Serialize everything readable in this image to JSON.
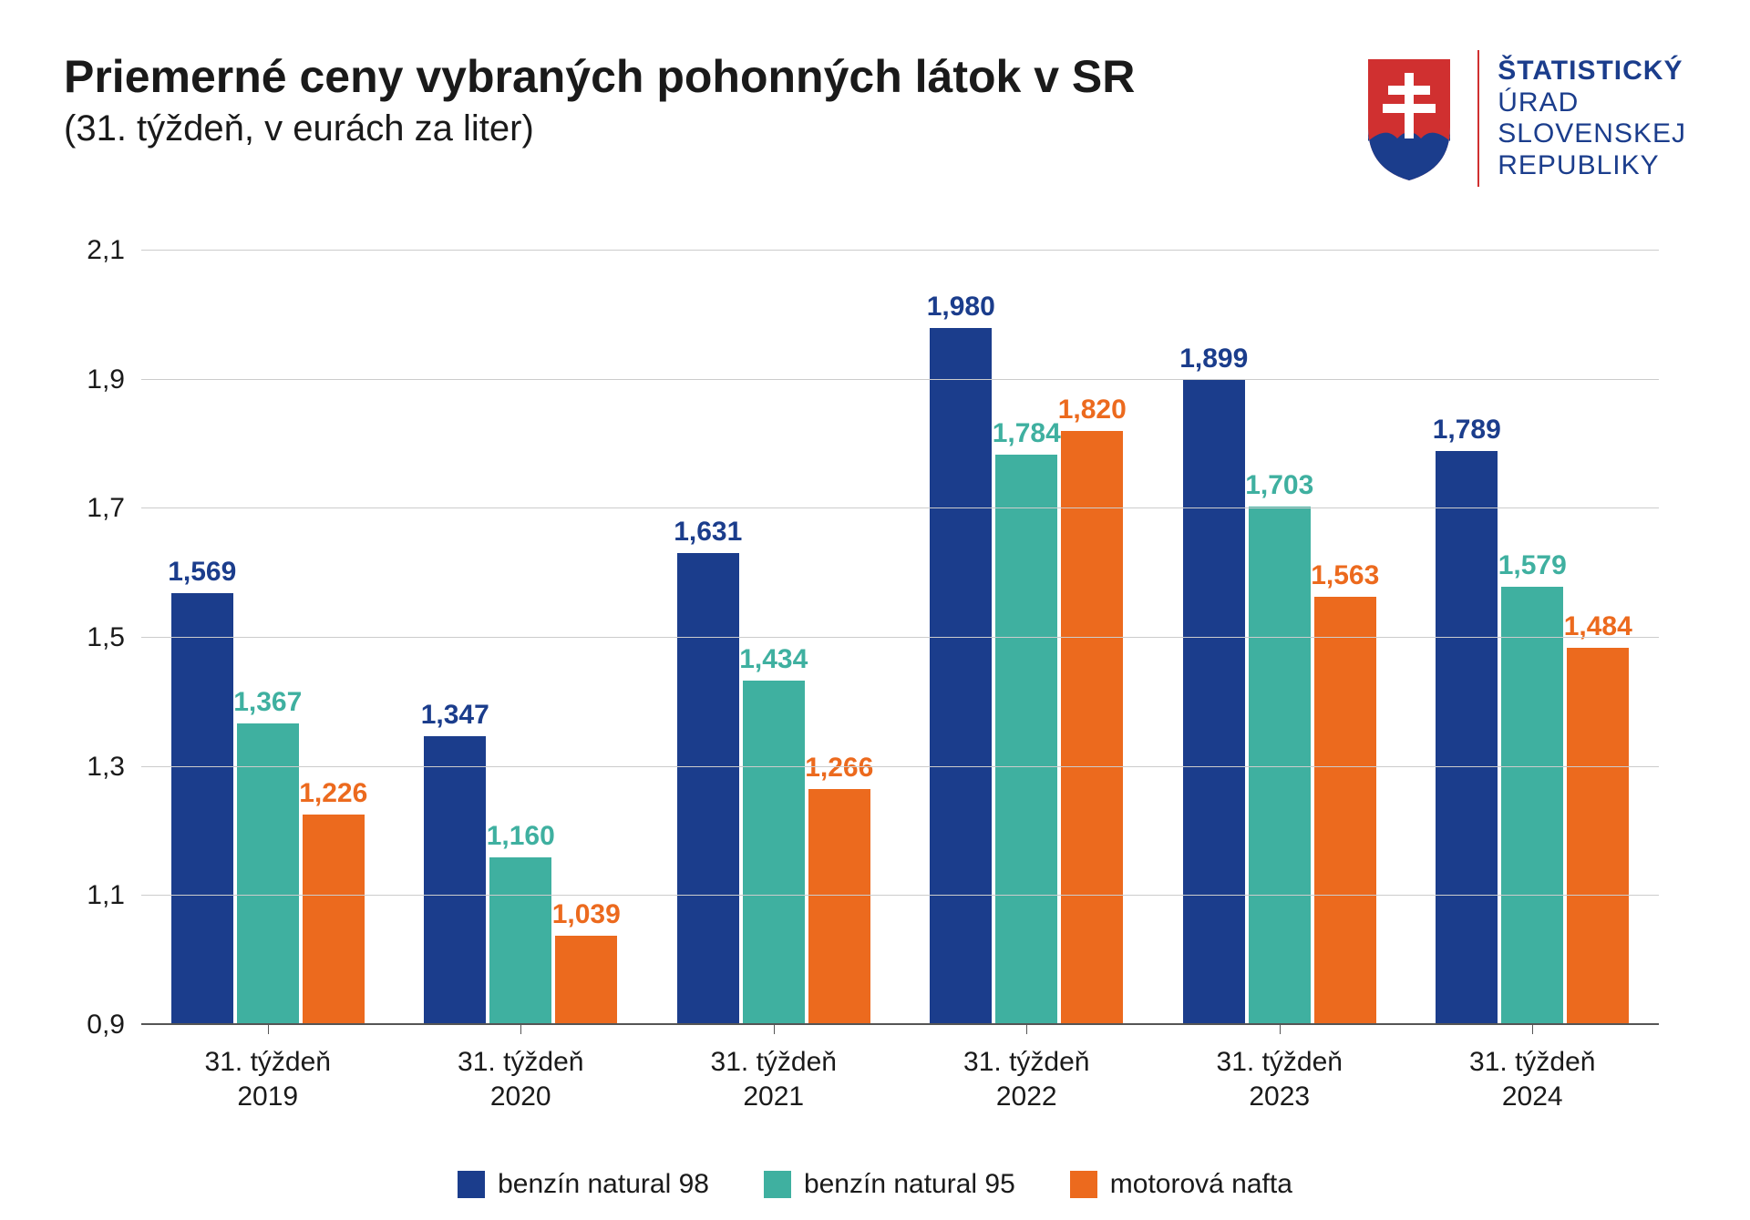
{
  "header": {
    "title": "Priemerné ceny vybraných pohonných látok v SR",
    "subtitle": "(31. týždeň, v eurách za liter)",
    "logo_lines": [
      "ŠTATISTICKÝ",
      "ÚRAD",
      "SLOVENSKEJ",
      "REPUBLIKY"
    ],
    "logo_bold_index": 0,
    "logo_text_color": "#1b3d8c",
    "divider_color": "#d03030"
  },
  "chart": {
    "type": "bar",
    "ylim": [
      0.9,
      2.1
    ],
    "ytick_step": 0.2,
    "yticks": [
      "0,9",
      "1,1",
      "1,3",
      "1,5",
      "1,7",
      "1,9",
      "2,1"
    ],
    "grid_color": "#cccccc",
    "baseline_color": "#555555",
    "background_color": "#ffffff",
    "label_fontsize": 30,
    "value_fontsize": 30,
    "bar_gap": 4,
    "series": [
      {
        "key": "n98",
        "label": "benzín natural 98",
        "color": "#1b3d8c"
      },
      {
        "key": "n95",
        "label": "benzín natural 95",
        "color": "#3fb0a0"
      },
      {
        "key": "nafta",
        "label": "motorová nafta",
        "color": "#ec6a1e"
      }
    ],
    "categories": [
      {
        "line1": "31. týždeň",
        "line2": "2019",
        "values": {
          "n98": 1.569,
          "n95": 1.367,
          "nafta": 1.226
        },
        "labels": {
          "n98": "1,569",
          "n95": "1,367",
          "nafta": "1,226"
        }
      },
      {
        "line1": "31. týždeň",
        "line2": "2020",
        "values": {
          "n98": 1.347,
          "n95": 1.16,
          "nafta": 1.039
        },
        "labels": {
          "n98": "1,347",
          "n95": "1,160",
          "nafta": "1,039"
        }
      },
      {
        "line1": "31. týždeň",
        "line2": "2021",
        "values": {
          "n98": 1.631,
          "n95": 1.434,
          "nafta": 1.266
        },
        "labels": {
          "n98": "1,631",
          "n95": "1,434",
          "nafta": "1,266"
        }
      },
      {
        "line1": "31. týždeň",
        "line2": "2022",
        "values": {
          "n98": 1.98,
          "n95": 1.784,
          "nafta": 1.82
        },
        "labels": {
          "n98": "1,980",
          "n95": "1,784",
          "nafta": "1,820"
        }
      },
      {
        "line1": "31. týždeň",
        "line2": "2023",
        "values": {
          "n98": 1.899,
          "n95": 1.703,
          "nafta": 1.563
        },
        "labels": {
          "n98": "1,899",
          "n95": "1,703",
          "nafta": "1,563"
        }
      },
      {
        "line1": "31. týždeň",
        "line2": "2024",
        "values": {
          "n98": 1.789,
          "n95": 1.579,
          "nafta": 1.484
        },
        "labels": {
          "n98": "1,789",
          "n95": "1,579",
          "nafta": "1,484"
        }
      }
    ]
  }
}
